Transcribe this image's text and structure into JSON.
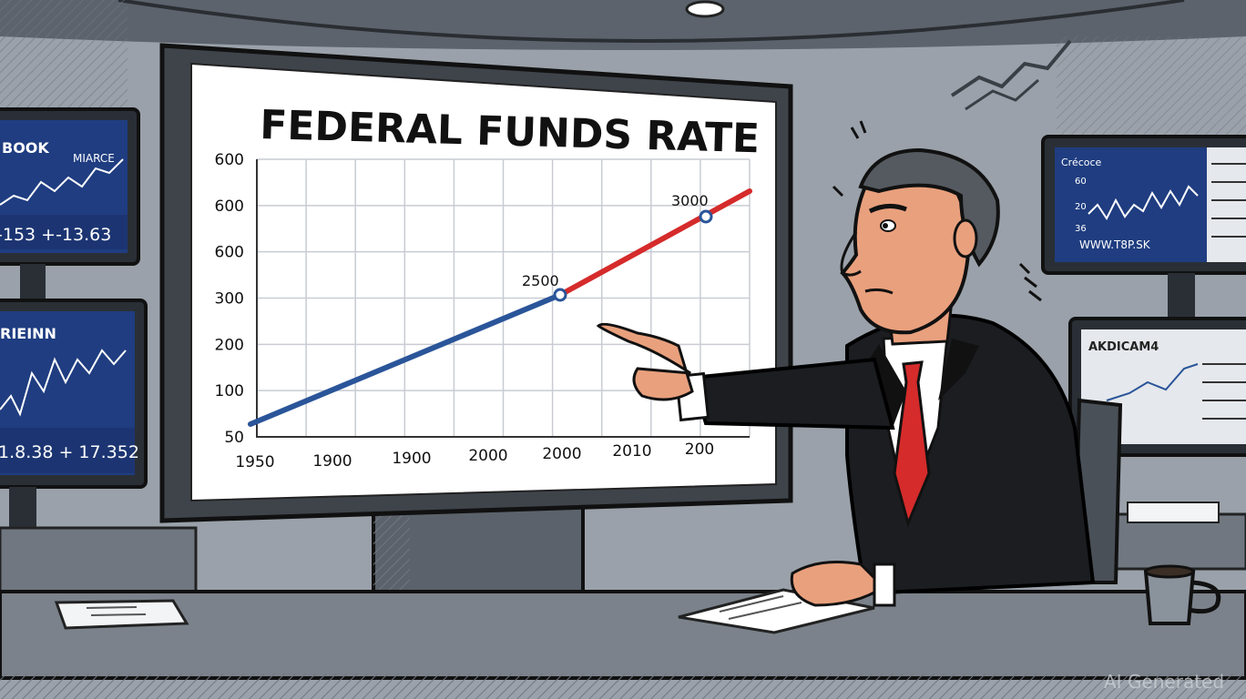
{
  "chart": {
    "title": "FEDERAL FUNDS RATE",
    "y_ticks": [
      "600",
      "600",
      "600",
      "300",
      "200",
      "100",
      "50"
    ],
    "x_ticks": [
      "1950",
      "1900",
      "1900",
      "2000",
      "2000",
      "2010",
      "200"
    ],
    "annotations": [
      "2500",
      "3000"
    ],
    "colors": {
      "blue_segment": "#2a5599",
      "red_segment": "#d52b2b"
    }
  },
  "chart_data": {
    "type": "line",
    "title": "FEDERAL FUNDS RATE",
    "xlabel": "",
    "ylabel": "",
    "y_tick_labels": [
      "600",
      "600",
      "600",
      "300",
      "200",
      "100",
      "50"
    ],
    "x_tick_labels": [
      "1950",
      "1900",
      "1900",
      "2000",
      "2000",
      "2010",
      "200"
    ],
    "point_labels": [
      "2500",
      "3000"
    ],
    "grid": true,
    "legend": "none"
  },
  "monitors": {
    "left_top": {
      "header_left": "BOOK",
      "header_right": "MIARCE",
      "ticker": "-153 +-13.63"
    },
    "left_bottom": {
      "header": "RIEINN",
      "ticker": "1.8.38 + 17.352"
    },
    "right_top": {
      "header": "Crécoce",
      "ticks": [
        "60",
        "20",
        "36"
      ],
      "footer": "WWW.T8P.SK"
    },
    "right_bottom": {
      "header": "AKDICAM4"
    }
  },
  "watermark": "AI Generated"
}
